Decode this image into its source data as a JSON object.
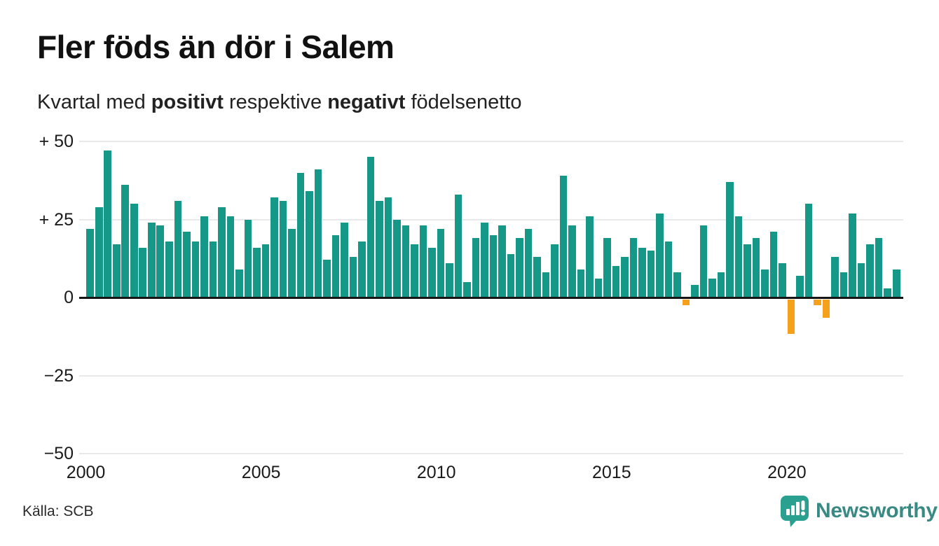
{
  "header": {
    "title": "Fler föds än dör i Salem",
    "subtitle": {
      "prefix": "Kvartal med ",
      "positive_word": "positivt",
      "middle": " respektive ",
      "negative_word": "negativt",
      "suffix": " födelsenetto"
    }
  },
  "colors": {
    "positive": "#169888",
    "negative": "#F5A11C",
    "title": "#111111",
    "gridline": "#e9e9ec",
    "axis": "#161616",
    "brand_teal": "#3a8a84",
    "logo_bubble": "#2aa091"
  },
  "chart_data": {
    "type": "bar",
    "title": "Fler föds än dör i Salem",
    "subtitle": "Kvartal med positivt respektive negativt födelsenetto",
    "xlabel": "",
    "ylabel": "",
    "ylim": [
      -50,
      50
    ],
    "grid": true,
    "positive_color": "#169888",
    "negative_color": "#F5A11C",
    "yticks": [
      {
        "label": "+ 50",
        "value": 50
      },
      {
        "label": "+ 25",
        "value": 25
      },
      {
        "label": "0",
        "value": 0
      },
      {
        "label": "−25",
        "value": -25
      },
      {
        "label": "−50",
        "value": -50
      }
    ],
    "xticks": [
      {
        "label": "2000",
        "year": 2000
      },
      {
        "label": "2005",
        "year": 2005
      },
      {
        "label": "2010",
        "year": 2010
      },
      {
        "label": "2015",
        "year": 2015
      },
      {
        "label": "2020",
        "year": 2020
      }
    ],
    "categories": [
      "2000Q1",
      "2000Q2",
      "2000Q3",
      "2000Q4",
      "2001Q1",
      "2001Q2",
      "2001Q3",
      "2001Q4",
      "2002Q1",
      "2002Q2",
      "2002Q3",
      "2002Q4",
      "2003Q1",
      "2003Q2",
      "2003Q3",
      "2003Q4",
      "2004Q1",
      "2004Q2",
      "2004Q3",
      "2004Q4",
      "2005Q1",
      "2005Q2",
      "2005Q3",
      "2005Q4",
      "2006Q1",
      "2006Q2",
      "2006Q3",
      "2006Q4",
      "2007Q1",
      "2007Q2",
      "2007Q3",
      "2007Q4",
      "2008Q1",
      "2008Q2",
      "2008Q3",
      "2008Q4",
      "2009Q1",
      "2009Q2",
      "2009Q3",
      "2009Q4",
      "2010Q1",
      "2010Q2",
      "2010Q3",
      "2010Q4",
      "2011Q1",
      "2011Q2",
      "2011Q3",
      "2011Q4",
      "2012Q1",
      "2012Q2",
      "2012Q3",
      "2012Q4",
      "2013Q1",
      "2013Q2",
      "2013Q3",
      "2013Q4",
      "2014Q1",
      "2014Q2",
      "2014Q3",
      "2014Q4",
      "2015Q1",
      "2015Q2",
      "2015Q3",
      "2015Q4",
      "2016Q1",
      "2016Q2",
      "2016Q3",
      "2016Q4",
      "2017Q1",
      "2017Q2",
      "2017Q3",
      "2017Q4",
      "2018Q1",
      "2018Q2",
      "2018Q3",
      "2018Q4",
      "2019Q1",
      "2019Q2",
      "2019Q3",
      "2019Q4",
      "2020Q1",
      "2020Q2",
      "2020Q3",
      "2020Q4",
      "2021Q1",
      "2021Q2",
      "2021Q3",
      "2021Q4",
      "2022Q1",
      "2022Q2",
      "2022Q3",
      "2022Q4",
      "2023Q1"
    ],
    "values": [
      22,
      29,
      47,
      17,
      36,
      30,
      16,
      24,
      23,
      18,
      31,
      21,
      18,
      26,
      18,
      29,
      26,
      9,
      25,
      16,
      17,
      32,
      31,
      22,
      40,
      34,
      41,
      12,
      20,
      24,
      13,
      18,
      45,
      31,
      32,
      25,
      23,
      17,
      23,
      16,
      22,
      11,
      33,
      5,
      19,
      24,
      20,
      23,
      14,
      19,
      22,
      13,
      8,
      17,
      39,
      23,
      9,
      26,
      6,
      19,
      10,
      13,
      19,
      16,
      15,
      27,
      18,
      8,
      -2,
      4,
      23,
      6,
      8,
      37,
      26,
      17,
      19,
      9,
      21,
      11,
      -11,
      7,
      30,
      -2,
      -6,
      13,
      8,
      27,
      11,
      17,
      19,
      3,
      9
    ]
  },
  "footer": {
    "source": "Källa: SCB",
    "brand": "Newsworthy"
  }
}
